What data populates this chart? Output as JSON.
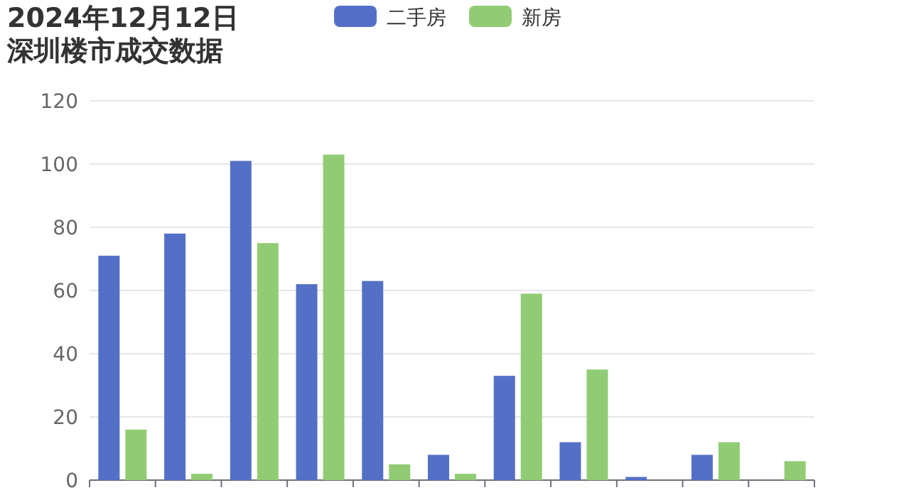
{
  "chart_data": {
    "type": "bar",
    "title": "2024年12月12日",
    "subtitle": "深圳楼市成交数据",
    "categories": [
      null,
      null,
      null,
      null,
      null,
      null,
      null,
      null,
      null,
      null,
      null
    ],
    "series": [
      {
        "name": "二手房",
        "color": "#5470c6",
        "values": [
          71,
          78,
          101,
          62,
          63,
          8,
          33,
          12,
          1,
          8,
          0
        ]
      },
      {
        "name": "新房",
        "color": "#91cc75",
        "values": [
          16,
          2,
          75,
          103,
          5,
          2,
          59,
          35,
          0,
          12,
          6
        ]
      }
    ],
    "ylim": [
      0,
      120
    ],
    "yticks": [
      0,
      20,
      40,
      60,
      80,
      100,
      120
    ],
    "grid": "y",
    "legend": "top"
  }
}
